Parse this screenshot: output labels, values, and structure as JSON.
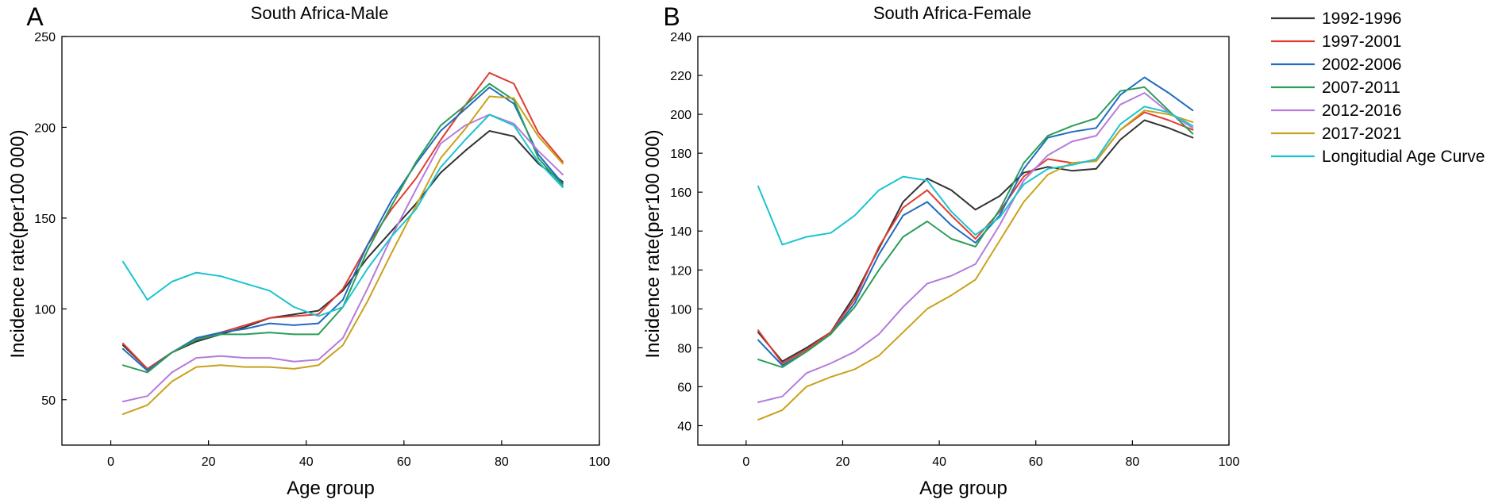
{
  "chart_data": [
    {
      "type": "line",
      "panel_label": "A",
      "title": "South Africa-Male",
      "xlabel": "Age group",
      "ylabel": "Incidence rate(per100 000)",
      "xlim": [
        -10,
        100
      ],
      "ylim": [
        25,
        250
      ],
      "xticks": [
        0,
        20,
        40,
        60,
        80,
        100
      ],
      "yticks": [
        50,
        100,
        150,
        200,
        250
      ],
      "x": [
        2.5,
        7.5,
        12.5,
        17.5,
        22.5,
        27.5,
        32.5,
        37.5,
        42.5,
        47.5,
        52.5,
        57.5,
        62.5,
        67.5,
        72.5,
        77.5,
        82.5,
        87.5,
        92.5
      ],
      "series": [
        {
          "name": "1992-1996",
          "color": "#333333",
          "values": [
            80,
            67,
            76,
            82,
            86,
            90,
            95,
            97,
            99,
            110,
            128,
            143,
            158,
            175,
            187,
            198,
            195,
            180,
            170
          ]
        },
        {
          "name": "1997-2001",
          "color": "#e03c31",
          "values": [
            81,
            67,
            76,
            83,
            87,
            91,
            95,
            96,
            97,
            111,
            135,
            155,
            172,
            193,
            212,
            230,
            224,
            197,
            181
          ]
        },
        {
          "name": "2002-2006",
          "color": "#1f6cc1",
          "values": [
            78,
            66,
            76,
            84,
            87,
            89,
            92,
            91,
            92,
            105,
            135,
            160,
            180,
            198,
            210,
            222,
            213,
            185,
            169
          ]
        },
        {
          "name": "2007-2011",
          "color": "#2a9e58",
          "values": [
            69,
            65,
            76,
            83,
            86,
            86,
            87,
            86,
            86,
            101,
            132,
            157,
            181,
            201,
            212,
            224,
            215,
            183,
            168
          ]
        },
        {
          "name": "2012-2016",
          "color": "#b57bdb",
          "values": [
            49,
            52,
            65,
            73,
            74,
            73,
            73,
            71,
            72,
            84,
            111,
            140,
            166,
            191,
            201,
            207,
            202,
            187,
            174
          ]
        },
        {
          "name": "2017-2021",
          "color": "#c9a21b",
          "values": [
            42,
            47,
            60,
            68,
            69,
            68,
            68,
            67,
            69,
            80,
            104,
            131,
            157,
            183,
            199,
            217,
            216,
            195,
            180
          ]
        },
        {
          "name": "Longitudial Age Curve",
          "color": "#1bc4d1",
          "values": [
            126,
            105,
            115,
            120,
            118,
            114,
            110,
            101,
            96,
            101,
            122,
            140,
            155,
            178,
            193,
            207,
            201,
            181,
            167
          ]
        }
      ]
    },
    {
      "type": "line",
      "panel_label": "B",
      "title": "South Africa-Female",
      "xlabel": "Age group",
      "ylabel": "Incidence rate(per100 000)",
      "xlim": [
        -10,
        100
      ],
      "ylim": [
        30,
        240
      ],
      "xticks": [
        0,
        20,
        40,
        60,
        80,
        100
      ],
      "yticks": [
        40,
        60,
        80,
        100,
        120,
        140,
        160,
        180,
        200,
        220,
        240
      ],
      "x": [
        2.5,
        7.5,
        12.5,
        17.5,
        22.5,
        27.5,
        32.5,
        37.5,
        42.5,
        47.5,
        52.5,
        57.5,
        62.5,
        67.5,
        72.5,
        77.5,
        82.5,
        87.5,
        92.5
      ],
      "series": [
        {
          "name": "1992-1996",
          "color": "#333333",
          "values": [
            88,
            73,
            80,
            88,
            107,
            131,
            155,
            167,
            161,
            151,
            158,
            170,
            173,
            171,
            172,
            187,
            197,
            193,
            188
          ]
        },
        {
          "name": "1997-2001",
          "color": "#e03c31",
          "values": [
            89,
            72,
            79,
            88,
            105,
            132,
            152,
            161,
            148,
            136,
            150,
            168,
            177,
            175,
            176,
            192,
            201,
            197,
            192
          ]
        },
        {
          "name": "2002-2006",
          "color": "#1f6cc1",
          "values": [
            84,
            71,
            78,
            87,
            103,
            128,
            148,
            155,
            143,
            134,
            148,
            172,
            188,
            191,
            193,
            210,
            219,
            211,
            202
          ]
        },
        {
          "name": "2007-2011",
          "color": "#2a9e58",
          "values": [
            74,
            70,
            78,
            87,
            101,
            120,
            137,
            145,
            136,
            132,
            151,
            175,
            189,
            194,
            198,
            212,
            214,
            202,
            190
          ]
        },
        {
          "name": "2012-2016",
          "color": "#b57bdb",
          "values": [
            52,
            55,
            67,
            72,
            78,
            87,
            101,
            113,
            117,
            123,
            143,
            166,
            179,
            186,
            189,
            205,
            211,
            201,
            193
          ]
        },
        {
          "name": "2017-2021",
          "color": "#c9a21b",
          "values": [
            43,
            48,
            60,
            65,
            69,
            76,
            88,
            100,
            107,
            115,
            135,
            155,
            169,
            175,
            176,
            192,
            202,
            200,
            196
          ]
        },
        {
          "name": "Longitudial Age Curve",
          "color": "#1bc4d1",
          "values": [
            163,
            133,
            137,
            139,
            148,
            161,
            168,
            166,
            150,
            138,
            147,
            164,
            172,
            174,
            177,
            195,
            204,
            201,
            194
          ]
        }
      ]
    }
  ]
}
